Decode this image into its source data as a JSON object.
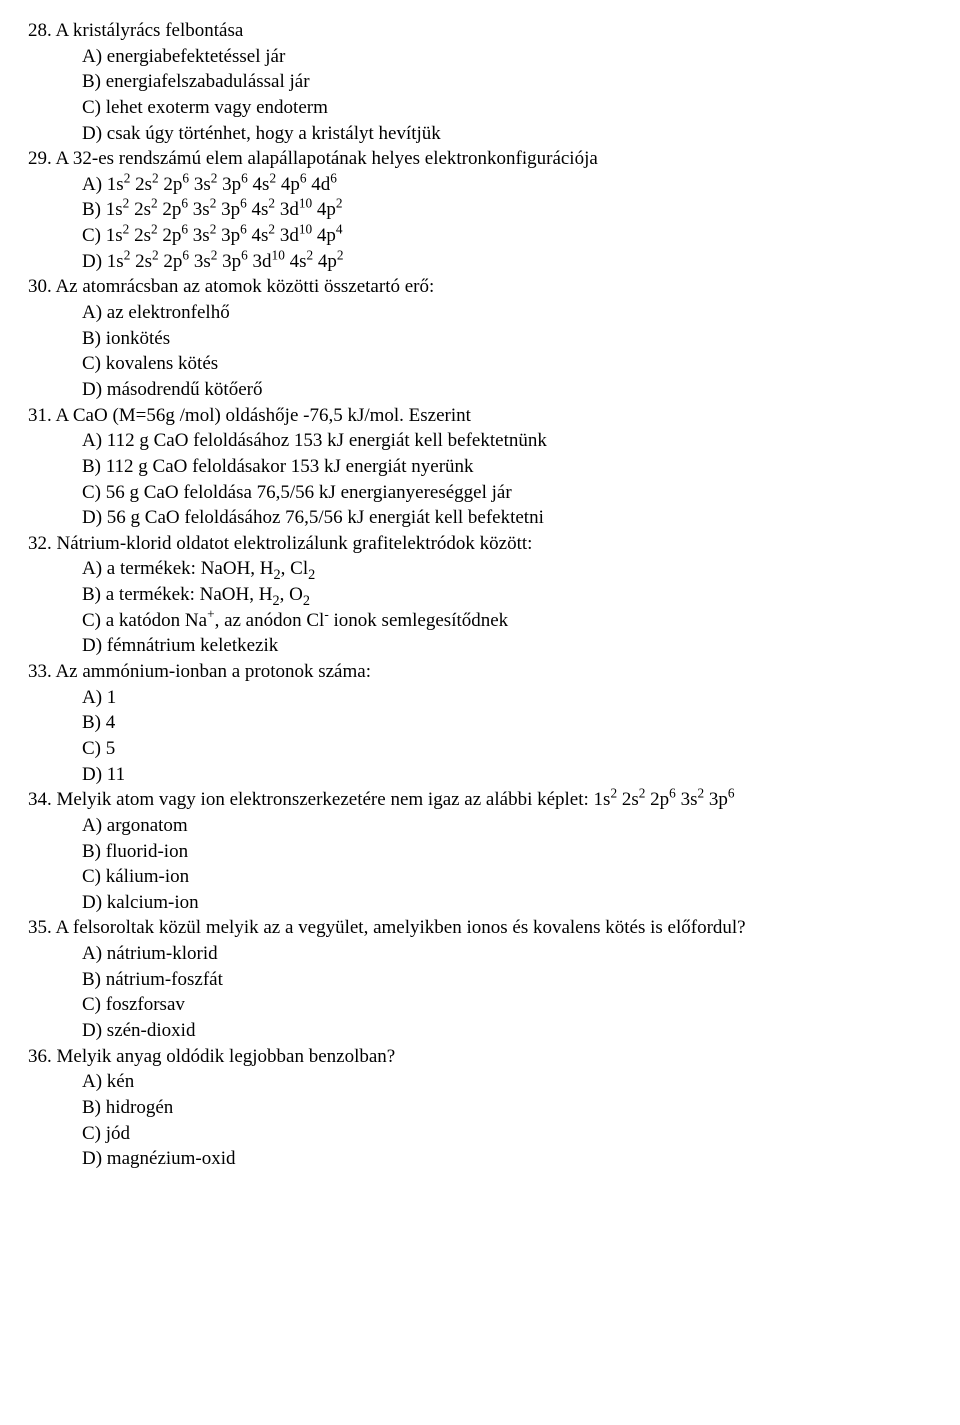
{
  "q28": {
    "num": "28.",
    "stem": "A kristályrács felbontása",
    "A": "A)  energiabefektetéssel jár",
    "B": "B)  energiafelszabadulással jár",
    "C": "C)  lehet exoterm vagy endoterm",
    "D": "D)  csak úgy történhet, hogy a kristályt hevítjük"
  },
  "q29": {
    "num": "29.",
    "stem": "A 32-es rendszámú elem alapállapotának helyes elektronkonfigurációja"
  },
  "q30": {
    "num": "30.",
    "stem": "Az atomrácsban az atomok közötti összetartó erő:",
    "A": "A)  az elektronfelhő",
    "B": "B)  ionkötés",
    "C": "C)  kovalens kötés",
    "D": "D)  másodrendű kötőerő"
  },
  "q31": {
    "num": "31.",
    "stem": "A CaO (M=56g /mol) oldáshője -76,5 kJ/mol. Eszerint",
    "A": "A)  112 g CaO feloldásához 153 kJ energiát kell befektetnünk",
    "B": "B)  112 g CaO feloldásakor 153 kJ energiát nyerünk",
    "C": "C)  56 g CaO feloldása 76,5/56 kJ energianyereséggel jár",
    "D": "D)  56 g CaO feloldásához 76,5/56 kJ energiát kell befektetni"
  },
  "q32": {
    "num": "32.",
    "stem": "Nátrium-klorid oldatot elektrolizálunk grafitelektródok között:",
    "D": "D)  fémnátrium keletkezik"
  },
  "q33": {
    "num": "33.",
    "stem": "Az ammónium-ionban a protonok száma:",
    "A": "A)  1",
    "B": "B)  4",
    "C": "C)  5",
    "D": "D)  11"
  },
  "q34": {
    "num": "34.",
    "A": "A)  argonatom",
    "B": "B)  fluorid-ion",
    "C": "C)  kálium-ion",
    "D": "D)  kalcium-ion"
  },
  "q35": {
    "num": "35.",
    "stem": "A felsoroltak közül melyik az a vegyület, amelyikben ionos és kovalens kötés is előfordul?",
    "A": "A)  nátrium-klorid",
    "B": "B)  nátrium-foszfát",
    "C": "C)  foszforsav",
    "D": "D)  szén-dioxid"
  },
  "q36": {
    "num": "36.",
    "stem": "Melyik anyag oldódik legjobban benzolban?",
    "A": "A)  kén",
    "B": "B)  hidrogén",
    "C": "C)  jód",
    "D": "D)  magnézium-oxid"
  }
}
